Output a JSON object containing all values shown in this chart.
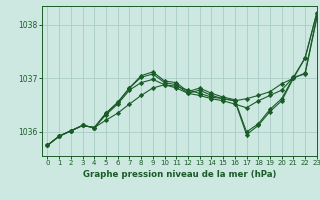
{
  "title": "Graphe pression niveau de la mer (hPa)",
  "bg_color": "#cce8e0",
  "grid_color": "#aaccc4",
  "line_color": "#1a5c28",
  "xlim": [
    -0.5,
    23
  ],
  "ylim": [
    1035.55,
    1038.35
  ],
  "yticks": [
    1036,
    1037,
    1038
  ],
  "xticks": [
    0,
    1,
    2,
    3,
    4,
    5,
    6,
    7,
    8,
    9,
    10,
    11,
    12,
    13,
    14,
    15,
    16,
    17,
    18,
    19,
    20,
    21,
    22,
    23
  ],
  "series": [
    [
      1035.75,
      1035.92,
      1036.02,
      1036.12,
      1036.08,
      1036.22,
      1036.35,
      1036.52,
      1036.68,
      1036.82,
      1036.88,
      1036.85,
      1036.78,
      1036.72,
      1036.65,
      1036.62,
      1036.58,
      1036.62,
      1036.68,
      1036.75,
      1036.9,
      1037.0,
      1037.1,
      1038.15
    ],
    [
      1035.75,
      1035.92,
      1036.02,
      1036.12,
      1036.08,
      1036.35,
      1036.55,
      1036.82,
      1037.02,
      1037.08,
      1036.92,
      1036.88,
      1036.72,
      1036.78,
      1036.68,
      1036.62,
      1036.58,
      1035.95,
      1036.12,
      1036.38,
      1036.58,
      1037.0,
      1037.38,
      1038.22
    ],
    [
      1035.75,
      1035.92,
      1036.02,
      1036.12,
      1036.08,
      1036.35,
      1036.55,
      1036.82,
      1037.05,
      1037.12,
      1036.95,
      1036.92,
      1036.75,
      1036.82,
      1036.72,
      1036.65,
      1036.6,
      1036.0,
      1036.15,
      1036.42,
      1036.62,
      1037.02,
      1037.38,
      1038.22
    ],
    [
      1035.75,
      1035.92,
      1036.02,
      1036.12,
      1036.08,
      1036.32,
      1036.52,
      1036.78,
      1036.92,
      1036.98,
      1036.88,
      1036.82,
      1036.72,
      1036.68,
      1036.62,
      1036.58,
      1036.52,
      1036.45,
      1036.58,
      1036.68,
      1036.78,
      1037.02,
      1037.08,
      1038.12
    ]
  ]
}
